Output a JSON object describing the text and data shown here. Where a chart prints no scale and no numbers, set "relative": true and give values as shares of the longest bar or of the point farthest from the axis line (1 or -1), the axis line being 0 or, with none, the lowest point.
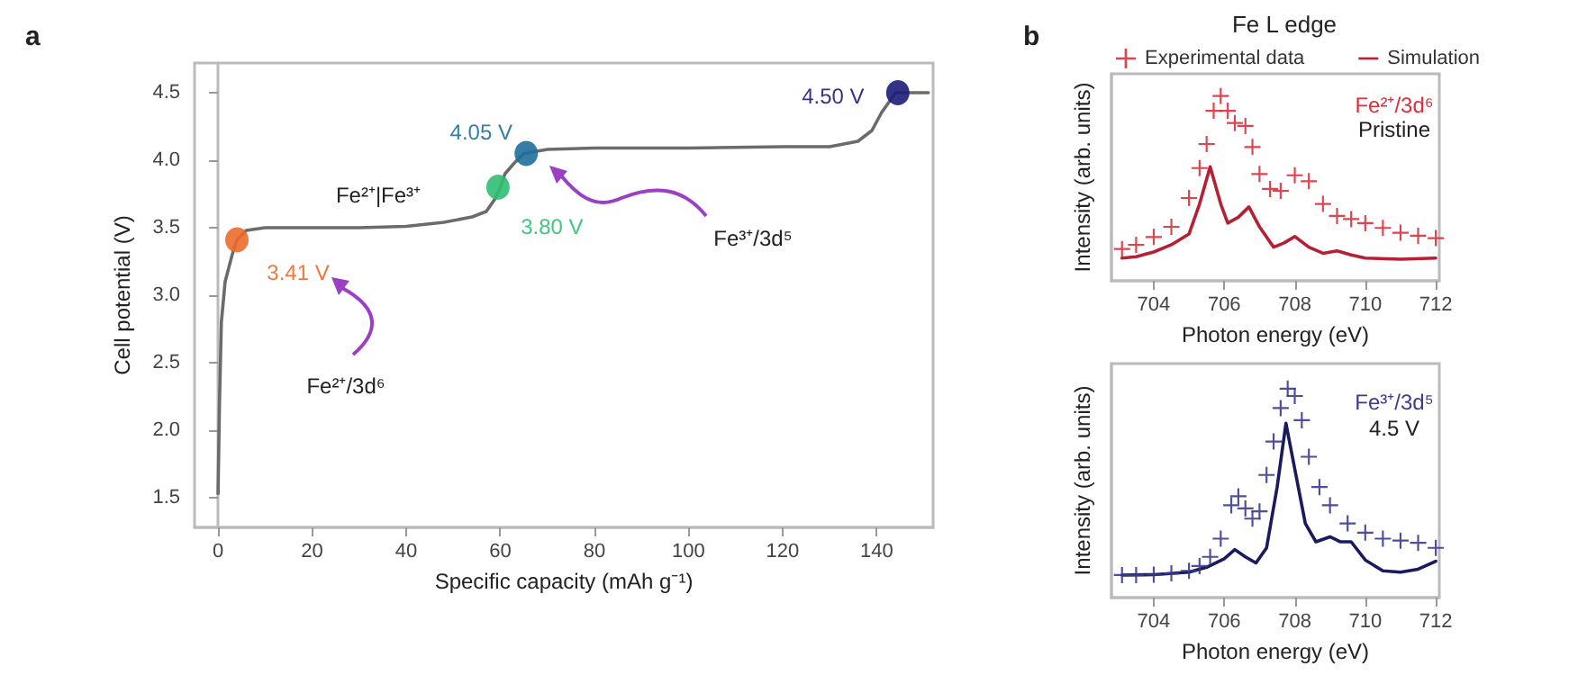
{
  "chart_data": [
    {
      "type": "line",
      "xlabel": "Specific capacity (mAh g⁻¹)",
      "ylabel": "Cell potential (V)",
      "xlim": [
        -5,
        152
      ],
      "ylim": [
        1.28,
        4.72
      ],
      "xticks": [
        0,
        20,
        40,
        60,
        80,
        100,
        120,
        140
      ],
      "yticks": [
        1.5,
        {
          "value": 2,
          "label": "2.0"
        },
        2.5,
        {
          "value": 3,
          "label": "3.0"
        },
        3.5,
        {
          "value": 4,
          "label": "4.0"
        },
        4.5
      ],
      "annotations": [
        "a",
        "Fe²⁺|Fe³⁺",
        "Fe²⁺/3d⁶",
        "Fe³⁺/3d⁵"
      ],
      "series": [
        {
          "color": "#6b6b6b",
          "marker": "none",
          "x": [
            0,
            0.3,
            0.7,
            1.5,
            3,
            4,
            6,
            10,
            30,
            40,
            48,
            54,
            57,
            59,
            60,
            61,
            63,
            65,
            70,
            80,
            100,
            120,
            130,
            136,
            139,
            141,
            143,
            144,
            151
          ],
          "values": [
            1.53,
            2.2,
            2.8,
            3.1,
            3.3,
            3.41,
            3.48,
            3.5,
            3.5,
            3.51,
            3.54,
            3.58,
            3.62,
            3.72,
            3.8,
            3.9,
            3.98,
            4.05,
            4.08,
            4.09,
            4.09,
            4.1,
            4.1,
            4.14,
            4.22,
            4.35,
            4.45,
            4.5,
            4.5
          ]
        },
        {
          "type": "scatter",
          "marker": "circle",
          "color": "#ec6a2c",
          "x": [
            4
          ],
          "values": [
            3.41
          ],
          "value_labels": [
            "3.41 V"
          ]
        },
        {
          "type": "scatter",
          "marker": "circle",
          "color": "#2fbf71",
          "x": [
            59.5
          ],
          "values": [
            3.8
          ],
          "value_labels": [
            "3.80 V"
          ]
        },
        {
          "type": "scatter",
          "marker": "circle",
          "color": "#1f6e9c",
          "x": [
            65.5
          ],
          "values": [
            4.05
          ],
          "value_labels": [
            "4.05 V"
          ]
        },
        {
          "type": "scatter",
          "marker": "circle",
          "color": "#1c1c7a",
          "x": [
            144.5
          ],
          "values": [
            4.5
          ],
          "value_labels": [
            "4.50 V"
          ]
        }
      ]
    },
    {
      "type": "line",
      "title": "Fe L edge",
      "xlabel": "Photon energy (eV)",
      "ylabel": "Intensity (arb. units)",
      "relative": true,
      "legend": "top",
      "xlim": [
        702.8,
        712.1
      ],
      "xticks": [
        704,
        706,
        708,
        710,
        712
      ],
      "annotations": [
        "b",
        "Fe²⁺/3d⁶",
        "Pristine"
      ],
      "series": [
        {
          "name": "Experimental data",
          "type": "scatter",
          "marker": "cross",
          "color": "#d9303a",
          "x": [
            703.1,
            703.5,
            704,
            704.5,
            705,
            705.3,
            705.5,
            705.7,
            705.9,
            706.1,
            706.3,
            706.6,
            706.8,
            707,
            707.3,
            707.6,
            708,
            708.4,
            708.8,
            709.2,
            709.6,
            710,
            710.5,
            711,
            711.5,
            712
          ],
          "values": [
            0.172,
            0.195,
            0.237,
            0.292,
            0.448,
            0.61,
            0.74,
            0.92,
            1,
            0.92,
            0.854,
            0.838,
            0.724,
            0.578,
            0.497,
            0.487,
            0.571,
            0.539,
            0.416,
            0.351,
            0.334,
            0.312,
            0.286,
            0.26,
            0.244,
            0.231
          ]
        },
        {
          "name": "Simulation",
          "marker": "none",
          "color": "#b52035",
          "x": [
            703.1,
            703.5,
            704,
            704.5,
            705,
            705.3,
            705.6,
            705.9,
            706.1,
            706.4,
            706.7,
            707,
            707.4,
            707.7,
            708,
            708.4,
            708.8,
            709.2,
            709.6,
            710,
            711,
            712
          ],
          "values": [
            0.123,
            0.13,
            0.156,
            0.195,
            0.253,
            0.416,
            0.617,
            0.416,
            0.312,
            0.344,
            0.4,
            0.292,
            0.182,
            0.205,
            0.24,
            0.182,
            0.149,
            0.162,
            0.14,
            0.123,
            0.117,
            0.123
          ]
        }
      ]
    },
    {
      "type": "line",
      "xlabel": "Photon energy (eV)",
      "ylabel": "Intensity (arb. units)",
      "relative": true,
      "xlim": [
        702.8,
        712.1
      ],
      "xticks": [
        704,
        706,
        708,
        710,
        712
      ],
      "annotations": [
        "Fe³⁺/3d⁵",
        "4.5 V"
      ],
      "series": [
        {
          "type": "scatter",
          "marker": "cross",
          "color": "#3b3b8f",
          "x": [
            703.1,
            703.5,
            704,
            704.5,
            705,
            705.3,
            705.6,
            705.9,
            706.2,
            706.4,
            706.6,
            706.8,
            707,
            707.2,
            707.4,
            707.6,
            707.8,
            708,
            708.2,
            708.4,
            708.7,
            709,
            709.5,
            710,
            710.5,
            711,
            711.5,
            712
          ],
          "values": [
            0.108,
            0.108,
            0.11,
            0.116,
            0.128,
            0.151,
            0.195,
            0.282,
            0.442,
            0.485,
            0.427,
            0.378,
            0.413,
            0.587,
            0.747,
            0.907,
            1,
            0.965,
            0.849,
            0.674,
            0.529,
            0.442,
            0.355,
            0.311,
            0.282,
            0.273,
            0.262,
            0.238
          ]
        },
        {
          "marker": "none",
          "color": "#1a1a5e",
          "x": [
            703.1,
            704,
            705,
            705.5,
            706,
            706.3,
            706.6,
            706.9,
            707.2,
            707.5,
            707.75,
            708,
            708.3,
            708.6,
            709,
            709.3,
            709.6,
            710,
            710.5,
            711,
            711.5,
            712
          ],
          "values": [
            0.108,
            0.11,
            0.122,
            0.145,
            0.186,
            0.23,
            0.195,
            0.166,
            0.238,
            0.529,
            0.834,
            0.616,
            0.355,
            0.267,
            0.291,
            0.267,
            0.267,
            0.18,
            0.128,
            0.122,
            0.136,
            0.174
          ]
        }
      ]
    }
  ]
}
